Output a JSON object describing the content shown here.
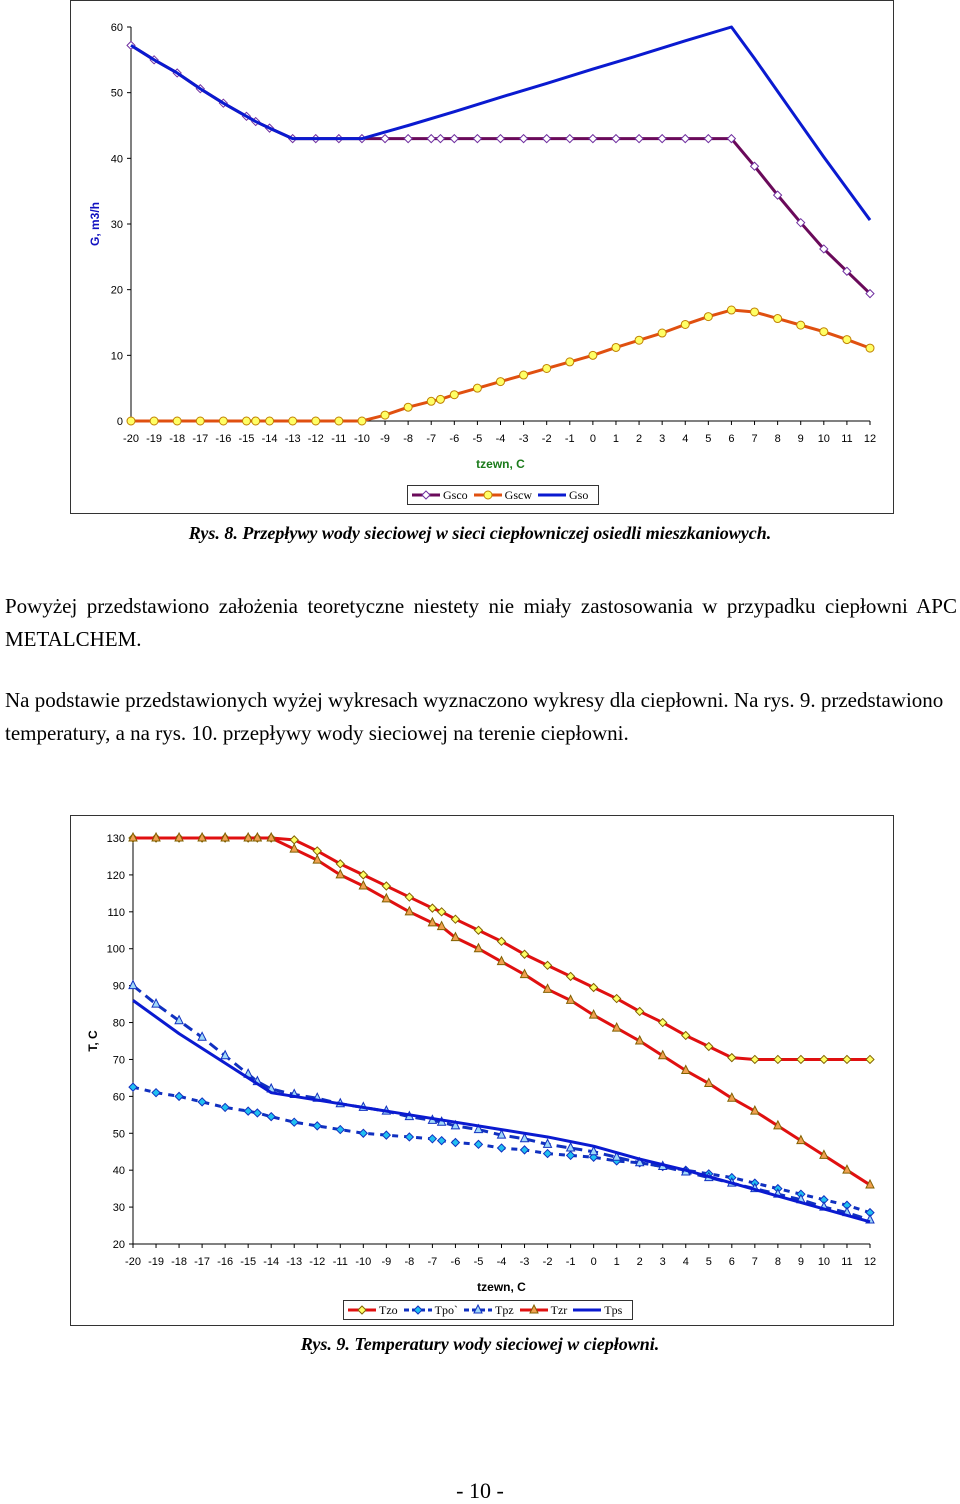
{
  "chart_data": [
    {
      "type": "line",
      "ylabel": "G, m3/h",
      "xlabel": "tzewn, C",
      "ylim": [
        0,
        60
      ],
      "yticks": [
        0,
        10,
        20,
        30,
        40,
        50,
        60
      ],
      "xlim": [
        -20,
        12
      ],
      "xticks": [
        -20,
        -19,
        -18,
        -17,
        -16,
        -15,
        -14,
        -13,
        -12,
        -11,
        -10,
        -9,
        -8,
        -7,
        -6,
        -5,
        -4,
        -3,
        -2,
        -1,
        0,
        1,
        2,
        3,
        4,
        5,
        6,
        7,
        8,
        9,
        10,
        11,
        12
      ],
      "legend_position": "bottom",
      "colors": {
        "axis_title": "#1a7a1a",
        "axis_title_y": "#1010c0"
      },
      "series": [
        {
          "name": "Gsco",
          "color": "#6a0a5a",
          "marker": "diamond",
          "marker_fill": "#ffffff",
          "marker_edge": "#7030a0",
          "x": [
            -20,
            -19,
            -18,
            -17,
            -16,
            -15,
            -14.6,
            -14,
            -13,
            -12,
            -11,
            -10,
            -9,
            -8,
            -7,
            -6.6,
            -6,
            -5,
            -4,
            -3,
            -2,
            -1,
            0,
            1,
            2,
            3,
            4,
            5,
            6,
            7,
            8,
            9,
            10,
            11,
            12
          ],
          "y": [
            57.2,
            55,
            53,
            50.6,
            48.4,
            46.4,
            45.6,
            44.6,
            43,
            43,
            43,
            43,
            43,
            43,
            43,
            43,
            43,
            43,
            43,
            43,
            43,
            43,
            43,
            43,
            43,
            43,
            43,
            43,
            43,
            38.8,
            34.4,
            30.2,
            26.2,
            22.8,
            19.4
          ]
        },
        {
          "name": "Gscw",
          "color": "#e05010",
          "marker": "circle",
          "marker_fill": "#ffff66",
          "marker_edge": "#c08000",
          "x": [
            -20,
            -19,
            -18,
            -17,
            -16,
            -15,
            -14.6,
            -14,
            -13,
            -12,
            -11,
            -10,
            -9,
            -8,
            -7,
            -6.6,
            -6,
            -5,
            -4,
            -3,
            -2,
            -1,
            0,
            1,
            2,
            3,
            4,
            5,
            6,
            7,
            8,
            9,
            10,
            11,
            12
          ],
          "y": [
            0,
            0,
            0,
            0,
            0,
            0,
            0,
            0,
            0,
            0,
            0,
            0,
            0.9,
            2.1,
            3,
            3.3,
            4,
            5,
            6,
            7,
            8,
            9,
            10,
            11.2,
            12.3,
            13.4,
            14.7,
            15.9,
            16.9,
            16.6,
            15.6,
            14.6,
            13.6,
            12.4,
            11.1
          ]
        },
        {
          "name": "Gso",
          "color": "#0a1ad0",
          "marker": "none",
          "x": [
            -20,
            -19,
            -18,
            -17,
            -16,
            -15,
            -14.6,
            -14,
            -13,
            -12,
            -11,
            -10,
            -8,
            -6,
            -4,
            -2,
            0,
            2,
            4,
            6,
            7,
            8,
            9,
            10,
            11,
            12
          ],
          "y": [
            57.2,
            55,
            53,
            50.6,
            48.4,
            46.4,
            45.6,
            44.6,
            43,
            43,
            43,
            43,
            45,
            47.1,
            49.3,
            51.4,
            53.6,
            55.7,
            57.9,
            60,
            55.2,
            50.2,
            45.2,
            40.2,
            35.4,
            30.6
          ]
        }
      ]
    },
    {
      "type": "line",
      "ylabel": "T, C",
      "xlabel": "tzewn, C",
      "ylim": [
        20,
        130
      ],
      "yticks": [
        20,
        30,
        40,
        50,
        60,
        70,
        80,
        90,
        100,
        110,
        120,
        130
      ],
      "xlim": [
        -20,
        12
      ],
      "xticks": [
        -20,
        -19,
        -18,
        -17,
        -16,
        -15,
        -14,
        -13,
        -12,
        -11,
        -10,
        -9,
        -8,
        -7,
        -6,
        -5,
        -4,
        -3,
        -2,
        -1,
        0,
        1,
        2,
        3,
        4,
        5,
        6,
        7,
        8,
        9,
        10,
        11,
        12
      ],
      "legend_position": "bottom",
      "series": [
        {
          "name": "Tzo",
          "color": "#e01010",
          "dash": "solid",
          "marker": "diamond",
          "marker_fill": "#ffff66",
          "marker_edge": "#806000",
          "x": [
            -20,
            -19,
            -18,
            -17,
            -16,
            -15,
            -14.6,
            -14,
            -13,
            -12,
            -11,
            -10,
            -9,
            -8,
            -7,
            -6.6,
            -6,
            -5,
            -4,
            -3,
            -2,
            -1,
            0,
            1,
            2,
            3,
            4,
            5,
            6,
            7,
            8,
            9,
            10,
            11,
            12
          ],
          "y": [
            130,
            130,
            130,
            130,
            130,
            130,
            130,
            130,
            129.5,
            126.5,
            123,
            120,
            117,
            114,
            111,
            110,
            108,
            105,
            102,
            98.5,
            95.5,
            92.5,
            89.5,
            86.5,
            83,
            80,
            76.5,
            73.5,
            70.5,
            70,
            70,
            70,
            70,
            70,
            70
          ]
        },
        {
          "name": "Tpo`",
          "color": "#1030c0",
          "dash": "6,6",
          "marker": "diamond",
          "marker_fill": "#20c0f0",
          "marker_edge": "#1030c0",
          "x": [
            -20,
            -19,
            -18,
            -17,
            -16,
            -15,
            -14.6,
            -14,
            -13,
            -12,
            -11,
            -10,
            -9,
            -8,
            -7,
            -6.6,
            -6,
            -5,
            -4,
            -3,
            -2,
            -1,
            0,
            1,
            2,
            3,
            4,
            5,
            6,
            7,
            8,
            9,
            10,
            11,
            12
          ],
          "y": [
            62.5,
            61,
            60,
            58.5,
            57,
            56,
            55.5,
            54.5,
            53,
            52,
            51,
            50,
            49.5,
            49,
            48.5,
            48,
            47.5,
            47,
            46,
            45.5,
            44.5,
            44,
            43.5,
            42.5,
            42,
            41,
            40,
            39,
            38,
            36.5,
            35,
            33.5,
            32,
            30.5,
            28.5
          ]
        },
        {
          "name": "Tpz",
          "color": "#1030c0",
          "dash": "10,6",
          "marker": "triangle",
          "marker_fill": "#a0d8f8",
          "marker_edge": "#1030c0",
          "x": [
            -20,
            -19,
            -18,
            -17,
            -16,
            -15,
            -14.6,
            -14,
            -13,
            -12,
            -11,
            -10,
            -9,
            -8,
            -7,
            -6.6,
            -6,
            -5,
            -4,
            -3,
            -2,
            -1,
            0,
            1,
            2,
            3,
            4,
            5,
            6,
            7,
            8,
            9,
            10,
            11,
            12
          ],
          "y": [
            90,
            85,
            80.5,
            76,
            71,
            66,
            64,
            62,
            60.5,
            59.5,
            58,
            57,
            56,
            54.5,
            53.5,
            53,
            52,
            51,
            49.5,
            48.5,
            47,
            46,
            45,
            43.5,
            42,
            41,
            39.5,
            38,
            36.5,
            35,
            33.5,
            32,
            30,
            28.5,
            26.5
          ]
        },
        {
          "name": "Tzr",
          "color": "#e01010",
          "dash": "solid",
          "marker": "triangle",
          "marker_fill": "#f0a050",
          "marker_edge": "#806000",
          "x": [
            -20,
            -19,
            -18,
            -17,
            -16,
            -15,
            -14.6,
            -14,
            -13,
            -12,
            -11,
            -10,
            -9,
            -8,
            -7,
            -6.6,
            -6,
            -5,
            -4,
            -3,
            -2,
            -1,
            0,
            1,
            2,
            3,
            4,
            5,
            6,
            7,
            8,
            9,
            10,
            11,
            12
          ],
          "y": [
            130,
            130,
            130,
            130,
            130,
            130,
            130,
            130,
            127,
            124,
            120,
            117,
            113.5,
            110,
            107,
            106,
            103,
            100,
            96.5,
            93,
            89,
            86,
            82,
            78.5,
            75,
            71,
            67,
            63.5,
            59.5,
            56,
            52,
            48,
            44,
            40,
            36
          ]
        },
        {
          "name": "Tps",
          "color": "#0a1ad0",
          "dash": "solid",
          "marker": "none",
          "x": [
            -20,
            -18,
            -16,
            -14,
            -12,
            -10,
            -8,
            -6,
            -4,
            -2,
            0,
            2,
            4,
            6,
            8,
            10,
            12
          ],
          "y": [
            86,
            77,
            69,
            61,
            59,
            57,
            55,
            53,
            51,
            49,
            46.5,
            43,
            40,
            36.5,
            33,
            29.5,
            26
          ]
        }
      ]
    }
  ],
  "figure1": {
    "caption": "Rys. 8. Przepływy wody sieciowej w sieci ciepłowniczej osiedli mieszkaniowych."
  },
  "figure2": {
    "caption": "Rys. 9. Temperatury wody sieciowej w ciepłowni."
  },
  "text": {
    "para1": "Powyżej przedstawiono założenia teoretyczne niestety nie miały zastosowania w przypadku ciepłowni APC METALCHEM.",
    "para2": "Na podstawie przedstawionych wyżej wykresach wyznaczono wykresy dla ciepłowni. Na rys. 9. przedstawiono temperatury, a na rys. 10. przepływy wody sieciowej na terenie ciepłowni.",
    "page_number": "- 10 -"
  }
}
